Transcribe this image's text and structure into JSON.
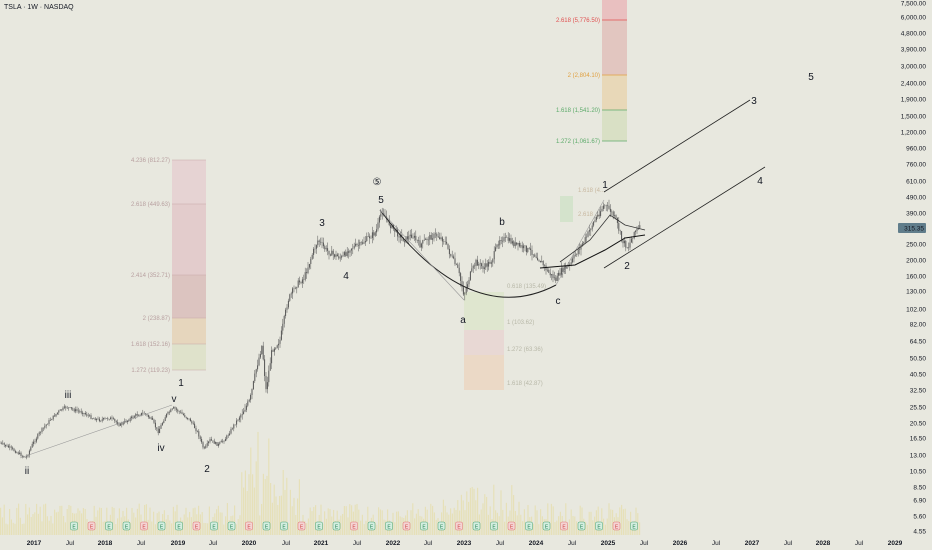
{
  "header": {
    "title": "TSLA · 1W · NASDAQ"
  },
  "price_badge": {
    "value": "315.35",
    "color": "#607d8b"
  },
  "colors": {
    "background": "#e8e8df",
    "candle": "#555555",
    "volume": "#e6e0b8",
    "line": "#000000"
  },
  "fib_top": [
    {
      "label": "2.618 (5,776.50)",
      "color": "#e05050"
    },
    {
      "label": "2 (2,804.10)",
      "color": "#e0a040"
    },
    {
      "label": "1.618 (1,541.20)",
      "color": "#5caa6a"
    },
    {
      "label": "1.272 (1,061.67)",
      "color": "#5caa6a"
    }
  ],
  "fib_left": [
    {
      "label": "4.236 (812.27)"
    },
    {
      "label": "2.618 (449.63)"
    },
    {
      "label": "2.414 (352.71)"
    },
    {
      "label": "2 (238.87)"
    },
    {
      "label": "1.618 (152.16)"
    },
    {
      "label": "1.272 (119.23)"
    }
  ],
  "fib_mid": [
    {
      "label": "0.618 (135.49)"
    },
    {
      "label": "1 (103.62)"
    },
    {
      "label": "1.272 (63.36)"
    },
    {
      "label": "1.618 (42.87)"
    }
  ],
  "fib_right": [
    {
      "label": "1.618 (4..."
    },
    {
      "label": "2.618 ..."
    }
  ],
  "wave_labels": [
    {
      "text": "ii"
    },
    {
      "text": "iii"
    },
    {
      "text": "iv"
    },
    {
      "text": "v"
    },
    {
      "text": "1"
    },
    {
      "text": "2"
    },
    {
      "text": "3"
    },
    {
      "text": "4"
    },
    {
      "text": "5"
    },
    {
      "text": "⑤"
    },
    {
      "text": "a"
    },
    {
      "text": "b"
    },
    {
      "text": "c"
    },
    {
      "text": "1"
    },
    {
      "text": "2"
    },
    {
      "text": "3"
    },
    {
      "text": "4"
    },
    {
      "text": "5"
    }
  ],
  "chart_data": {
    "type": "line",
    "title": "TSLA · 1W · NASDAQ",
    "y_scale": "log",
    "y_ticks": [
      "7,500.00",
      "6,000.00",
      "4,800.00",
      "3,900.00",
      "3,000.00",
      "2,400.00",
      "1,900.00",
      "1,500.00",
      "1,200.00",
      "960.00",
      "760.00",
      "610.00",
      "490.00",
      "390.00",
      "250.00",
      "200.00",
      "160.00",
      "130.00",
      "102.00",
      "82.00",
      "64.50",
      "50.50",
      "40.50",
      "32.50",
      "25.50",
      "20.50",
      "16.50",
      "13.00",
      "10.50",
      "8.50",
      "6.90",
      "5.60",
      "4.55"
    ],
    "x_ticks": [
      "2017",
      "Jul",
      "2018",
      "Jul",
      "2019",
      "Jul",
      "2020",
      "Jul",
      "2021",
      "Jul",
      "2022",
      "Jul",
      "2023",
      "Jul",
      "2024",
      "Jul",
      "2025",
      "Jul",
      "2026",
      "Jul",
      "2027",
      "Jul",
      "2028",
      "Jul",
      "2029"
    ],
    "last_price": 315.35,
    "series": [
      {
        "x": [
          "2017",
          "Jul",
          "2018",
          "Jul",
          "2019",
          "Jul",
          "2020",
          "Jul",
          "2021",
          "Jul",
          "2022",
          "Jul",
          "2023",
          "Jul",
          "2024",
          "Jul",
          "2025"
        ],
        "values": [
          14.5,
          18,
          22,
          21,
          20,
          14,
          28,
          95,
          230,
          220,
          380,
          250,
          115,
          270,
          185,
          230,
          420
        ]
      }
    ]
  }
}
